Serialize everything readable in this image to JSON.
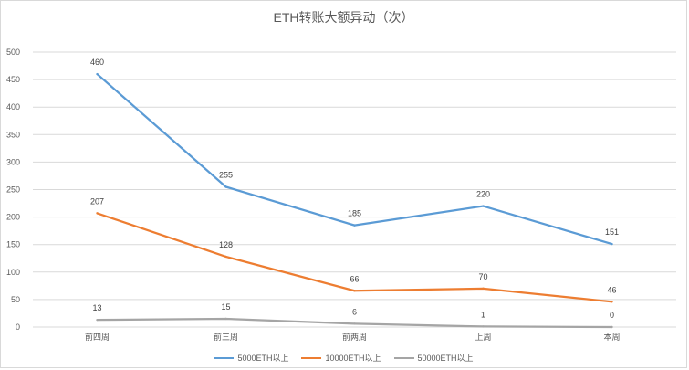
{
  "chart_data": {
    "type": "line",
    "title": "ETH转账大额异动（次）",
    "categories": [
      "前四周",
      "前三周",
      "前两周",
      "上周",
      "本周"
    ],
    "ylim": [
      0,
      500
    ],
    "yticks": [
      0,
      50,
      100,
      150,
      200,
      250,
      300,
      350,
      400,
      450,
      500
    ],
    "grid": true,
    "legend": "bottom",
    "series": [
      {
        "name": "5000ETH以上",
        "color": "#5b9bd5",
        "values": [
          460,
          255,
          185,
          220,
          151
        ]
      },
      {
        "name": "10000ETH以上",
        "color": "#ed7d31",
        "values": [
          207,
          128,
          66,
          70,
          46
        ]
      },
      {
        "name": "50000ETH以上",
        "color": "#a5a5a5",
        "values": [
          13,
          15,
          6,
          1,
          0
        ]
      }
    ]
  }
}
